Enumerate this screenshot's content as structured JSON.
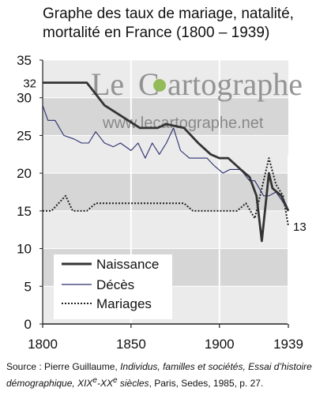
{
  "title": "Graphe des taux de mariage, natalité, mortalité en France (1800 – 1939)",
  "watermark": {
    "brand_prefix": "Le ",
    "brand_c": "C",
    "brand_rest": "artographe",
    "url": "www.lecartographe.net"
  },
  "source": {
    "prefix": "Source : Pierre Guillaume, ",
    "title_italic": "Individus, familles et sociétés, Essai d’histoire démographique, XIX",
    "sup1": "e",
    "dash": "-XX",
    "sup2": "e",
    "after": " siècles",
    "rest": ", Paris, Sedes, 1985, p. 27."
  },
  "colors": {
    "band_dark": "#d6d6d6",
    "band_light": "#ebebeb",
    "natalite": "#333333",
    "deces": "#2b2f6e",
    "mariages": "#222222",
    "watermark_green": "#8ab84a"
  },
  "chart_data": {
    "type": "line",
    "title": "Graphe des taux de mariage, natalité, mortalité en France (1800 – 1939)",
    "xlim": [
      1800,
      1939
    ],
    "ylim": [
      0,
      35
    ],
    "x_ticks": [
      1800,
      1850,
      1900,
      1939
    ],
    "y_ticks": [
      0,
      5,
      10,
      15,
      20,
      25,
      30,
      35
    ],
    "grid": "vertical lines at 1850 and 1900, horizontal bands every 5",
    "legend_position": "bottom-left",
    "series": [
      {
        "name": "Naissance",
        "style": "thick-solid",
        "points": [
          [
            1800,
            32
          ],
          [
            1825,
            32
          ],
          [
            1835,
            29
          ],
          [
            1845,
            27.5
          ],
          [
            1855,
            26
          ],
          [
            1865,
            26
          ],
          [
            1870,
            26.5
          ],
          [
            1880,
            26
          ],
          [
            1888,
            24
          ],
          [
            1895,
            22.5
          ],
          [
            1900,
            22
          ],
          [
            1905,
            22
          ],
          [
            1912,
            20.5
          ],
          [
            1917,
            19.5
          ],
          [
            1921,
            17
          ],
          [
            1924,
            11
          ],
          [
            1928,
            20
          ],
          [
            1930,
            18
          ],
          [
            1935,
            17
          ],
          [
            1939,
            15
          ]
        ]
      },
      {
        "name": "Décès",
        "style": "thin-solid",
        "points": [
          [
            1800,
            29
          ],
          [
            1803,
            27
          ],
          [
            1807,
            27
          ],
          [
            1812,
            25
          ],
          [
            1818,
            24.5
          ],
          [
            1822,
            24
          ],
          [
            1826,
            24
          ],
          [
            1830,
            25.5
          ],
          [
            1835,
            24
          ],
          [
            1840,
            23.5
          ],
          [
            1844,
            24
          ],
          [
            1850,
            23
          ],
          [
            1854,
            24
          ],
          [
            1858,
            22
          ],
          [
            1862,
            24
          ],
          [
            1866,
            22.5
          ],
          [
            1870,
            24
          ],
          [
            1874,
            26
          ],
          [
            1878,
            23
          ],
          [
            1883,
            22
          ],
          [
            1888,
            22
          ],
          [
            1893,
            22
          ],
          [
            1897,
            21
          ],
          [
            1902,
            20
          ],
          [
            1906,
            20.5
          ],
          [
            1912,
            20.5
          ],
          [
            1917,
            19
          ],
          [
            1920,
            19
          ],
          [
            1925,
            17
          ],
          [
            1928,
            17
          ],
          [
            1932,
            17.5
          ],
          [
            1935,
            16.5
          ],
          [
            1939,
            15
          ]
        ]
      },
      {
        "name": "Mariages",
        "style": "dotted",
        "points": [
          [
            1800,
            15
          ],
          [
            1805,
            15
          ],
          [
            1811,
            16.5
          ],
          [
            1813,
            17
          ],
          [
            1817,
            15
          ],
          [
            1825,
            15
          ],
          [
            1830,
            16
          ],
          [
            1870,
            16
          ],
          [
            1875,
            16
          ],
          [
            1880,
            16
          ],
          [
            1885,
            15
          ],
          [
            1910,
            15
          ],
          [
            1915,
            16
          ],
          [
            1920,
            14
          ],
          [
            1925,
            19
          ],
          [
            1928,
            22
          ],
          [
            1932,
            18.5
          ],
          [
            1936,
            17
          ],
          [
            1939,
            13
          ]
        ]
      }
    ],
    "annotations": [
      {
        "text": "32",
        "x": 1800,
        "y": 32,
        "side": "left"
      },
      {
        "text": "13",
        "x": 1939,
        "y": 13,
        "side": "right"
      }
    ]
  }
}
